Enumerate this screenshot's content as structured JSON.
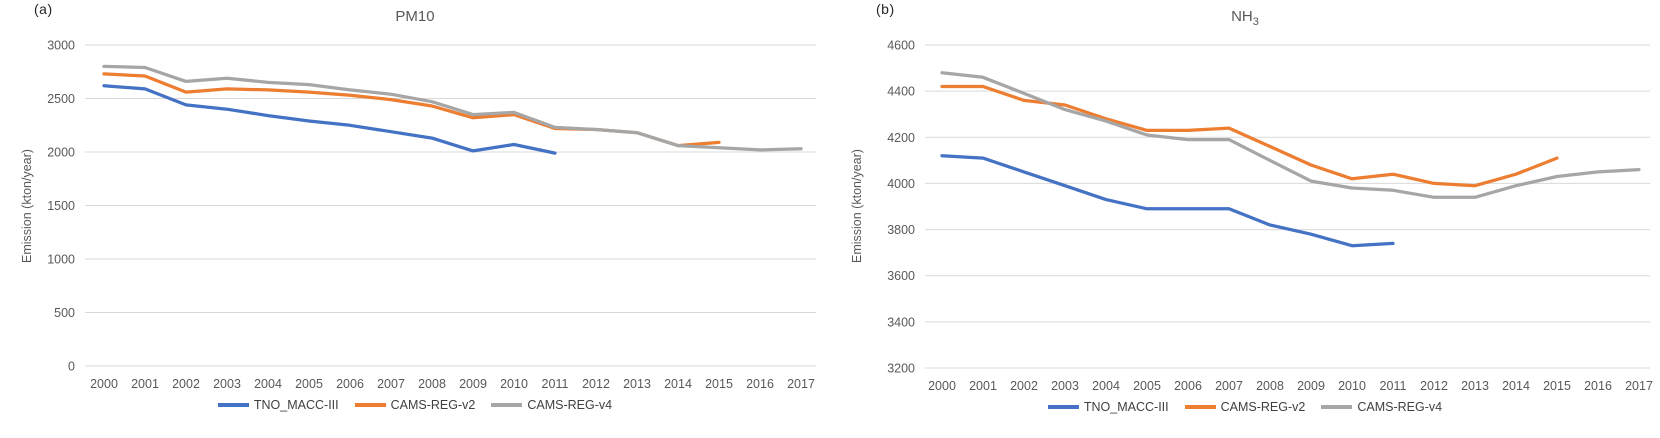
{
  "chart_data": [
    {
      "type": "line",
      "panel_label": "(a)",
      "title": "PM10",
      "title_sub": "",
      "xlabel": "",
      "ylabel": "Emission (kton/year)",
      "x": [
        2000,
        2001,
        2002,
        2003,
        2004,
        2005,
        2006,
        2007,
        2008,
        2009,
        2010,
        2011,
        2012,
        2013,
        2014,
        2015,
        2016,
        2017
      ],
      "ylim": [
        0,
        3000
      ],
      "ytick_step": 500,
      "grid": true,
      "legend_position": "bottom",
      "series": [
        {
          "name": "TNO_MACC-III",
          "color": "#4472C4",
          "values": [
            2620,
            2590,
            2440,
            2400,
            2340,
            2290,
            2250,
            2190,
            2130,
            2010,
            2070,
            1990
          ]
        },
        {
          "name": "CAMS-REG-v2",
          "color": "#ED7D31",
          "values": [
            2730,
            2710,
            2560,
            2590,
            2580,
            2560,
            2530,
            2490,
            2430,
            2320,
            2350,
            2220,
            2210,
            2180,
            2060,
            2090
          ]
        },
        {
          "name": "CAMS-REG-v4",
          "color": "#A6A6A6",
          "values": [
            2800,
            2790,
            2660,
            2690,
            2650,
            2630,
            2580,
            2540,
            2470,
            2350,
            2370,
            2230,
            2210,
            2180,
            2060,
            2040,
            2020,
            2030
          ]
        }
      ]
    },
    {
      "type": "line",
      "panel_label": "(b)",
      "title": "NH",
      "title_sub": "3",
      "xlabel": "",
      "ylabel": "Emission (kton/year)",
      "x": [
        2000,
        2001,
        2002,
        2003,
        2004,
        2005,
        2006,
        2007,
        2008,
        2009,
        2010,
        2011,
        2012,
        2013,
        2014,
        2015,
        2016,
        2017
      ],
      "ylim": [
        3200,
        4600
      ],
      "ytick_step": 200,
      "grid": true,
      "legend_position": "bottom",
      "series": [
        {
          "name": "TNO_MACC-III",
          "color": "#4472C4",
          "values": [
            4120,
            4110,
            4050,
            3990,
            3930,
            3890,
            3890,
            3890,
            3820,
            3780,
            3730,
            3740
          ]
        },
        {
          "name": "CAMS-REG-v2",
          "color": "#ED7D31",
          "values": [
            4420,
            4420,
            4360,
            4340,
            4280,
            4230,
            4230,
            4240,
            4160,
            4080,
            4020,
            4040,
            4000,
            3990,
            4040,
            4110
          ]
        },
        {
          "name": "CAMS-REG-v4",
          "color": "#A6A6A6",
          "values": [
            4480,
            4460,
            4390,
            4320,
            4270,
            4210,
            4190,
            4190,
            4100,
            4010,
            3980,
            3970,
            3940,
            3940,
            3990,
            4030,
            4050,
            4060
          ]
        }
      ]
    }
  ],
  "style_colors": {
    "gridline": "#D9D9D9",
    "tick_text": "#595959",
    "title_text": "#595959",
    "legend_text": "#404040"
  }
}
